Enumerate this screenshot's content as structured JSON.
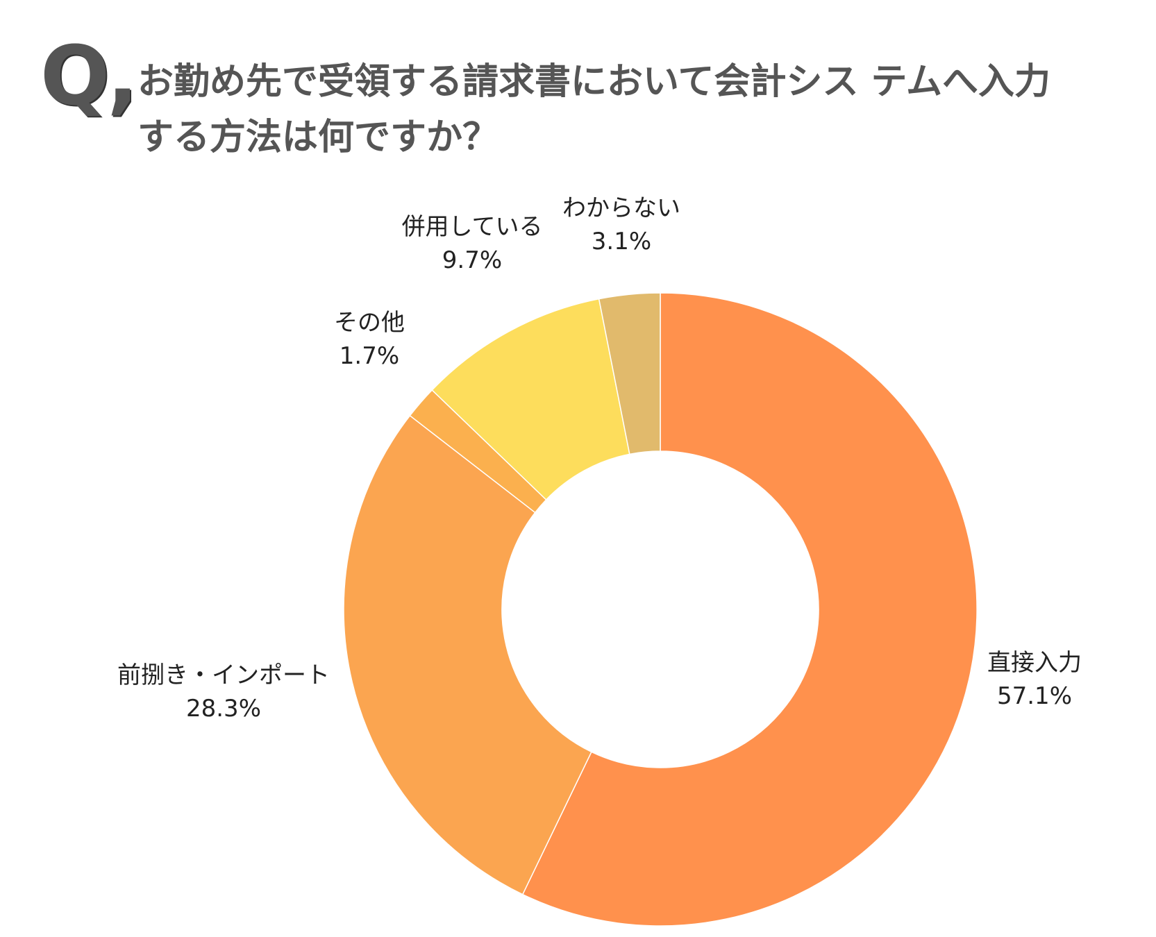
{
  "header": {
    "q_mark": "Q,",
    "question_line1": "お勤め先で受領する請求書において会計シス テムへ入力",
    "question_line2": "する方法は何ですか？"
  },
  "chart_data": {
    "type": "pie",
    "variant": "donut",
    "title": "",
    "start": "top, clockwise",
    "slices": [
      {
        "label": "直接入力",
        "value": 57.1,
        "display": "57.1%",
        "color": "#FF914D"
      },
      {
        "label": "前捌き・インポート",
        "value": 28.3,
        "display": "28.3%",
        "color": "#FBA550"
      },
      {
        "label": "その他",
        "value": 1.7,
        "display": "1.7%",
        "color": "#FBB04E"
      },
      {
        "label": "併用している",
        "value": 9.7,
        "display": "9.7%",
        "color": "#FDDD5C"
      },
      {
        "label": "わからない",
        "value": 3.1,
        "display": "3.1%",
        "color": "#E1BA6C"
      }
    ]
  }
}
